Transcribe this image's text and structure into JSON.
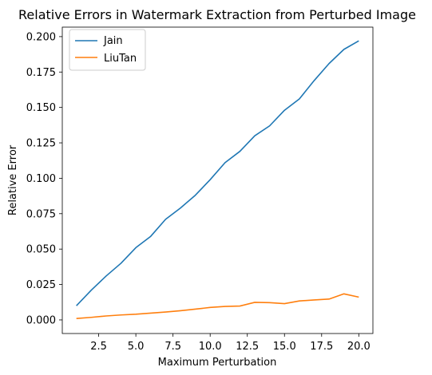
{
  "chart_data": {
    "type": "line",
    "title": "Relative Errors in Watermark Extraction from Perturbed Image",
    "xlabel": "Maximum Perturbation",
    "ylabel": "Relative Error",
    "xlim": [
      0.05,
      20.95
    ],
    "ylim": [
      -0.0096,
      0.2067
    ],
    "xticks": [
      2.5,
      5.0,
      7.5,
      10.0,
      12.5,
      15.0,
      17.5,
      20.0
    ],
    "xtick_labels": [
      "2.5",
      "5.0",
      "7.5",
      "10.0",
      "12.5",
      "15.0",
      "17.5",
      "20.0"
    ],
    "yticks": [
      0.0,
      0.025,
      0.05,
      0.075,
      0.1,
      0.125,
      0.15,
      0.175,
      0.2
    ],
    "ytick_labels": [
      "0.000",
      "0.025",
      "0.050",
      "0.075",
      "0.100",
      "0.125",
      "0.150",
      "0.175",
      "0.200"
    ],
    "grid": false,
    "legend_position": "upper-left",
    "x": [
      1,
      2,
      3,
      4,
      5,
      6,
      7,
      8,
      9,
      10,
      11,
      12,
      13,
      14,
      15,
      16,
      17,
      18,
      19,
      20
    ],
    "series": [
      {
        "name": "Jain",
        "color": "#1f77b4",
        "values": [
          0.01,
          0.021,
          0.031,
          0.04,
          0.051,
          0.059,
          0.071,
          0.079,
          0.088,
          0.099,
          0.111,
          0.119,
          0.13,
          0.137,
          0.148,
          0.156,
          0.169,
          0.181,
          0.191,
          0.197
        ]
      },
      {
        "name": "LiuTan",
        "color": "#ff7f0e",
        "values": [
          0.001,
          0.0018,
          0.0028,
          0.0035,
          0.004,
          0.0048,
          0.0056,
          0.0065,
          0.0076,
          0.0088,
          0.0095,
          0.0098,
          0.0124,
          0.0122,
          0.0115,
          0.0134,
          0.0141,
          0.0147,
          0.0184,
          0.0161
        ]
      }
    ]
  }
}
